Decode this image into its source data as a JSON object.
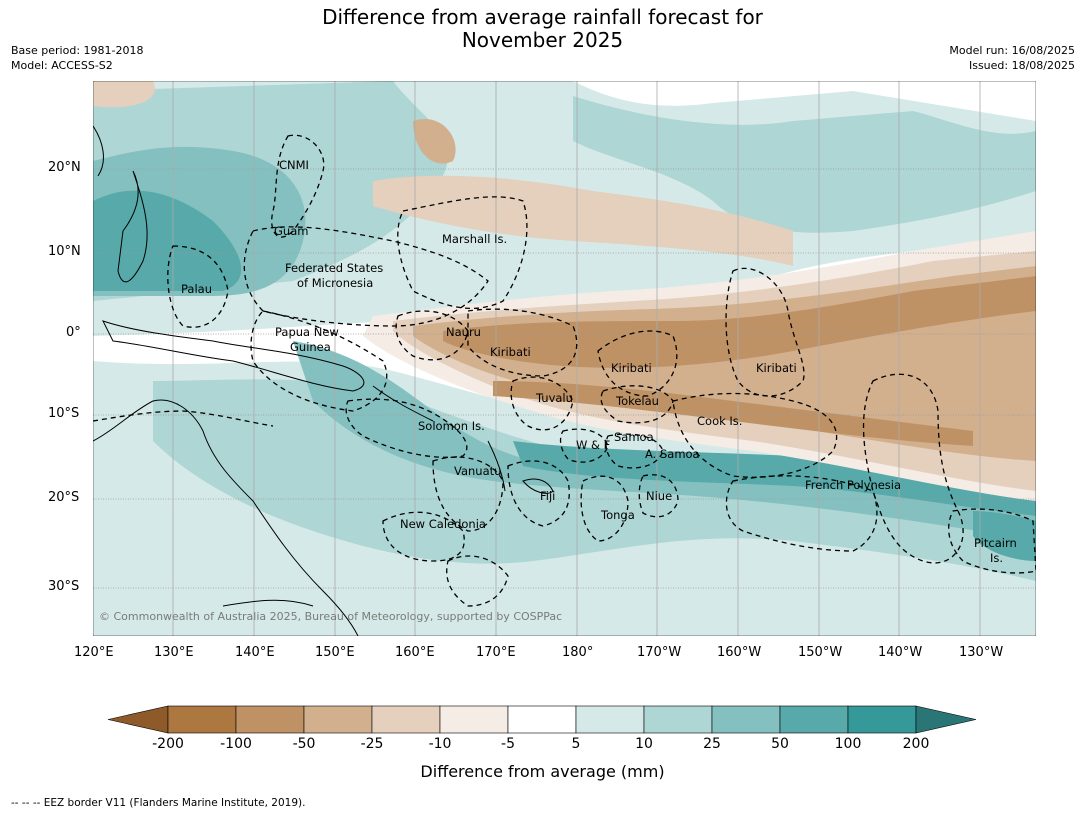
{
  "title_line1": "Difference from average rainfall forecast for",
  "title_line2": "November 2025",
  "meta_left": [
    "Base period: 1981-2018",
    "Model: ACCESS-S2"
  ],
  "meta_right": [
    "Model run: 16/08/2025",
    "Issued: 18/08/2025"
  ],
  "lon_labels": [
    "120°E",
    "130°E",
    "140°E",
    "150°E",
    "160°E",
    "170°E",
    "180°",
    "170°W",
    "160°W",
    "150°W",
    "140°W",
    "130°W"
  ],
  "lat_labels": [
    "20°N",
    "10°N",
    "0°",
    "10°S",
    "20°S",
    "30°S"
  ],
  "places": [
    {
      "id": "cnmi",
      "text": "CNMI"
    },
    {
      "id": "guam",
      "text": "Guam"
    },
    {
      "id": "marshall",
      "text": "Marshall Is."
    },
    {
      "id": "fsm1",
      "text": "Federated States"
    },
    {
      "id": "fsm2",
      "text": "of Micronesia"
    },
    {
      "id": "palau",
      "text": "Palau"
    },
    {
      "id": "png1",
      "text": "Papua New"
    },
    {
      "id": "png2",
      "text": "Guinea"
    },
    {
      "id": "nauru",
      "text": "Nauru"
    },
    {
      "id": "kiribati1",
      "text": "Kiribati"
    },
    {
      "id": "kiribati2",
      "text": "Kiribati"
    },
    {
      "id": "kiribati3",
      "text": "Kiribati"
    },
    {
      "id": "tuvalu",
      "text": "Tuvalu"
    },
    {
      "id": "tokelau",
      "text": "Tokelau"
    },
    {
      "id": "cook",
      "text": "Cook Is."
    },
    {
      "id": "solomon",
      "text": "Solomon Is."
    },
    {
      "id": "wf",
      "text": "W & F"
    },
    {
      "id": "samoa",
      "text": "Samoa"
    },
    {
      "id": "asamoa",
      "text": "A. Samoa"
    },
    {
      "id": "vanuatu",
      "text": "Vanuatu"
    },
    {
      "id": "fiji",
      "text": "Fiji"
    },
    {
      "id": "niue",
      "text": "Niue"
    },
    {
      "id": "tonga",
      "text": "Tonga"
    },
    {
      "id": "frpoly",
      "text": "French Polynesia"
    },
    {
      "id": "newcal",
      "text": "New Caledonia"
    },
    {
      "id": "pitcairn1",
      "text": "Pitcairn"
    },
    {
      "id": "pitcairn2",
      "text": "Is."
    }
  ],
  "copyright": "© Commonwealth of Australia 2025, Bureau of Meteorology, supported by COSPPac",
  "colorbar": {
    "ticks": [
      "-200",
      "-100",
      "-50",
      "-25",
      "-10",
      "-5",
      "5",
      "10",
      "25",
      "50",
      "100",
      "200"
    ],
    "colors": [
      "#8f5a2a",
      "#ad7740",
      "#bf9266",
      "#d2b08e",
      "#e4d0bd",
      "#f4ece5",
      "#ffffff",
      "#d5eae8",
      "#aed6d4",
      "#85c0c0",
      "#58a9a9",
      "#35999a",
      "#2a7575"
    ],
    "title": "Difference from average (mm)"
  },
  "footnote": "--  --  -- EEZ border V11 (Flanders Marine Institute, 2019)."
}
